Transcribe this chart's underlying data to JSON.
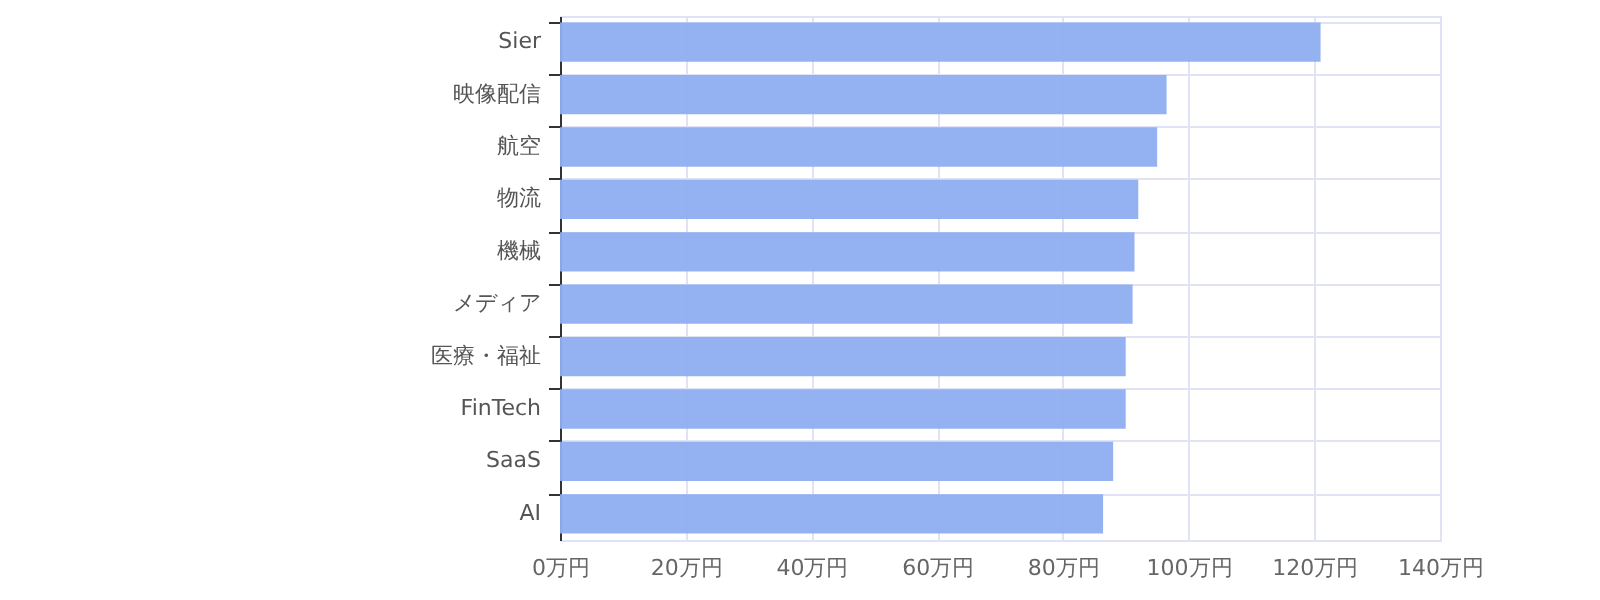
{
  "chart_data": {
    "type": "bar",
    "orientation": "horizontal",
    "categories": [
      "Sier",
      "映像配信",
      "航空",
      "物流",
      "機械",
      "メディア",
      "医療・福祉",
      "FinTech",
      "SaaS",
      "AI"
    ],
    "values": [
      121,
      96.5,
      95,
      92,
      91.4,
      91.1,
      90,
      90,
      88,
      86.4
    ],
    "color": "#8eaef0",
    "xlim": [
      0,
      140
    ],
    "xticks": [
      {
        "value": 0,
        "label": "0万円"
      },
      {
        "value": 20,
        "label": "20万円"
      },
      {
        "value": 40,
        "label": "40万円"
      },
      {
        "value": 60,
        "label": "60万円"
      },
      {
        "value": 80,
        "label": "80万円"
      },
      {
        "value": 100,
        "label": "100万円"
      },
      {
        "value": 120,
        "label": "120万円"
      },
      {
        "value": 140,
        "label": "140万円"
      }
    ],
    "grid": true
  }
}
